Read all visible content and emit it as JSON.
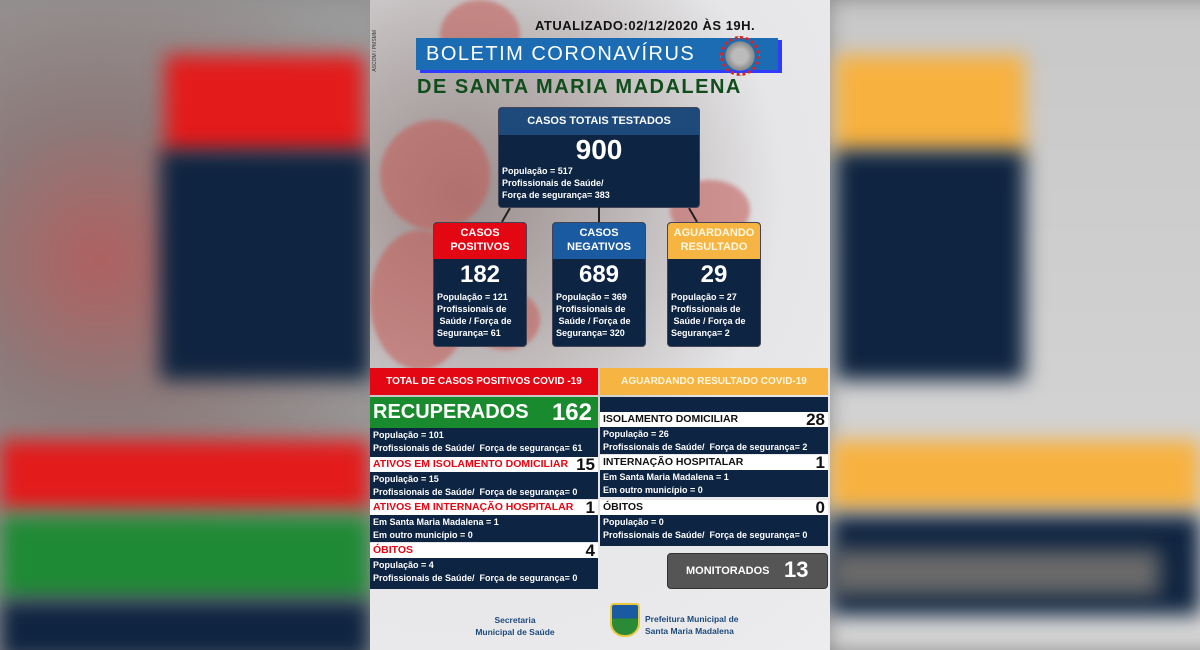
{
  "updated": "ATUALIZADO:02/12/2020 ÀS 19H.",
  "credit": "ASCOM / PMSMM",
  "title": "BOLETIM CORONAVÍRUS",
  "subtitle": "DE SANTA MARIA MADALENA",
  "total": {
    "label": "CASOS TOTAIS TESTADOS",
    "value": "900",
    "lines": [
      "População = 517",
      "Profissionais de Saúde/",
      "Força de segurança= 383"
    ]
  },
  "boxes": [
    {
      "label1": "CASOS",
      "label2": "POSITIVOS",
      "value": "182",
      "lines": [
        "População = 121",
        "Profissionais de",
        " Saúde / Força de",
        "Segurança= 61"
      ],
      "color": "#e30613"
    },
    {
      "label1": "CASOS",
      "label2": "NEGATIVOS",
      "value": "689",
      "lines": [
        "População = 369",
        "Profissionais de",
        " Saúde / Força de",
        "Segurança= 320"
      ],
      "color": "#1a5aa0"
    },
    {
      "label1": "AGUARDANDO",
      "label2": "RESULTADO",
      "value": "29",
      "lines": [
        "População = 27",
        "Profissionais de",
        " Saúde / Força de",
        "Segurança= 2"
      ],
      "color": "#f6b543"
    }
  ],
  "left": {
    "header": "TOTAL DE CASOS POSITIVOS COVID -19",
    "recovered_label": "RECUPERADOS",
    "recovered_value": "162",
    "recovered_lines": [
      "População = 101",
      "Profissionais de Saúde/  Força de segurança= 61"
    ],
    "sections": [
      {
        "label": "ATIVOS EM ISOLAMENTO DOMICILIAR",
        "value": "15",
        "lines": [
          "População = 15",
          "Profissionais de Saúde/  Força de segurança= 0"
        ]
      },
      {
        "label": "ATIVOS EM INTERNAÇÃO HOSPITALAR",
        "value": "1",
        "lines": [
          "Em Santa Maria Madalena = 1",
          "Em outro município = 0"
        ]
      },
      {
        "label": "ÓBITOS",
        "value": "4",
        "lines": [
          "População = 4",
          "Profissionais de Saúde/  Força de segurança= 0"
        ]
      }
    ]
  },
  "right": {
    "header": "AGUARDANDO RESULTADO COVID-19",
    "sections": [
      {
        "label": "ISOLAMENTO DOMICILIAR",
        "value": "28",
        "lines": [
          "População = 26",
          "Profissionais de Saúde/  Força de segurança= 2"
        ]
      },
      {
        "label": "INTERNAÇÃO HOSPITALAR",
        "value": "1",
        "lines": [
          "Em Santa Maria Madalena = 1",
          "Em outro município = 0"
        ]
      },
      {
        "label": "ÓBITOS",
        "value": "0",
        "lines": [
          "População = 0",
          "Profissionais de Saúde/  Força de segurança= 0"
        ]
      }
    ],
    "monitored_label": "MONITORADOS",
    "monitored_value": "13"
  },
  "footer": {
    "secretaria": [
      "Secretaria",
      "Municipal de Saúde"
    ],
    "prefeitura": [
      "Prefeitura Municipal de",
      "Santa Maria Madalena"
    ]
  },
  "colors": {
    "navy": "#0d2442",
    "red": "#e30613",
    "green": "#1a8a2e",
    "orange": "#f6b543",
    "blue": "#1a5aa0",
    "title_green": "#0f4d1a"
  }
}
